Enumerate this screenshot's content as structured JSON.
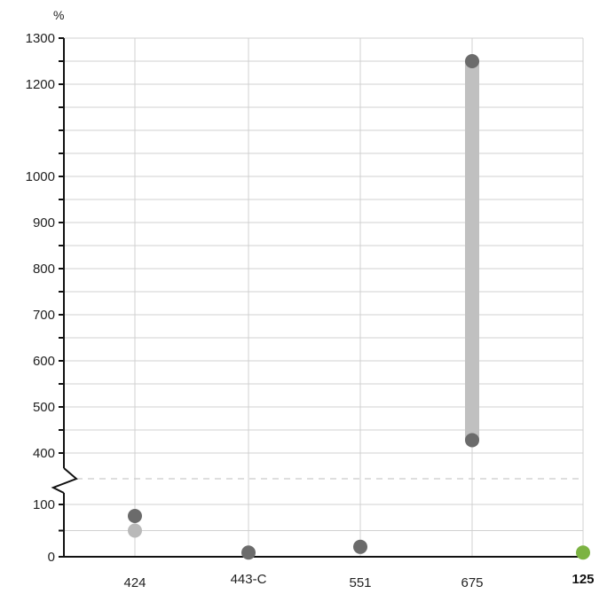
{
  "chart_data": {
    "type": "scatter",
    "ylabel": "%",
    "y_axis_break": true,
    "y_ticks_labeled": [
      0,
      100,
      400,
      500,
      600,
      700,
      800,
      900,
      1000,
      1200,
      1300
    ],
    "categories": [
      "424",
      "443-C",
      "551",
      "675",
      "125"
    ],
    "highlighted_category": "125",
    "points": [
      {
        "category": "424",
        "value": 78,
        "color": "#6b6b6b"
      },
      {
        "category": "424",
        "value": 50,
        "color": "#b9b9b9"
      },
      {
        "category": "443-C",
        "value": 8,
        "color": "#6b6b6b"
      },
      {
        "category": "551",
        "value": 19,
        "color": "#6b6b6b"
      },
      {
        "category": "675",
        "value": 1250,
        "color": "#6b6b6b"
      },
      {
        "category": "675",
        "value": 428,
        "color": "#6b6b6b"
      },
      {
        "category": "125",
        "value": 8,
        "color": "#7cb342"
      }
    ],
    "ranges": [
      {
        "category": "675",
        "low": 428,
        "high": 1250,
        "color": "#c0c0c0"
      }
    ],
    "colors": {
      "axis": "#111111",
      "grid": "#d0d0d0",
      "highlight": "#7cb342"
    }
  }
}
